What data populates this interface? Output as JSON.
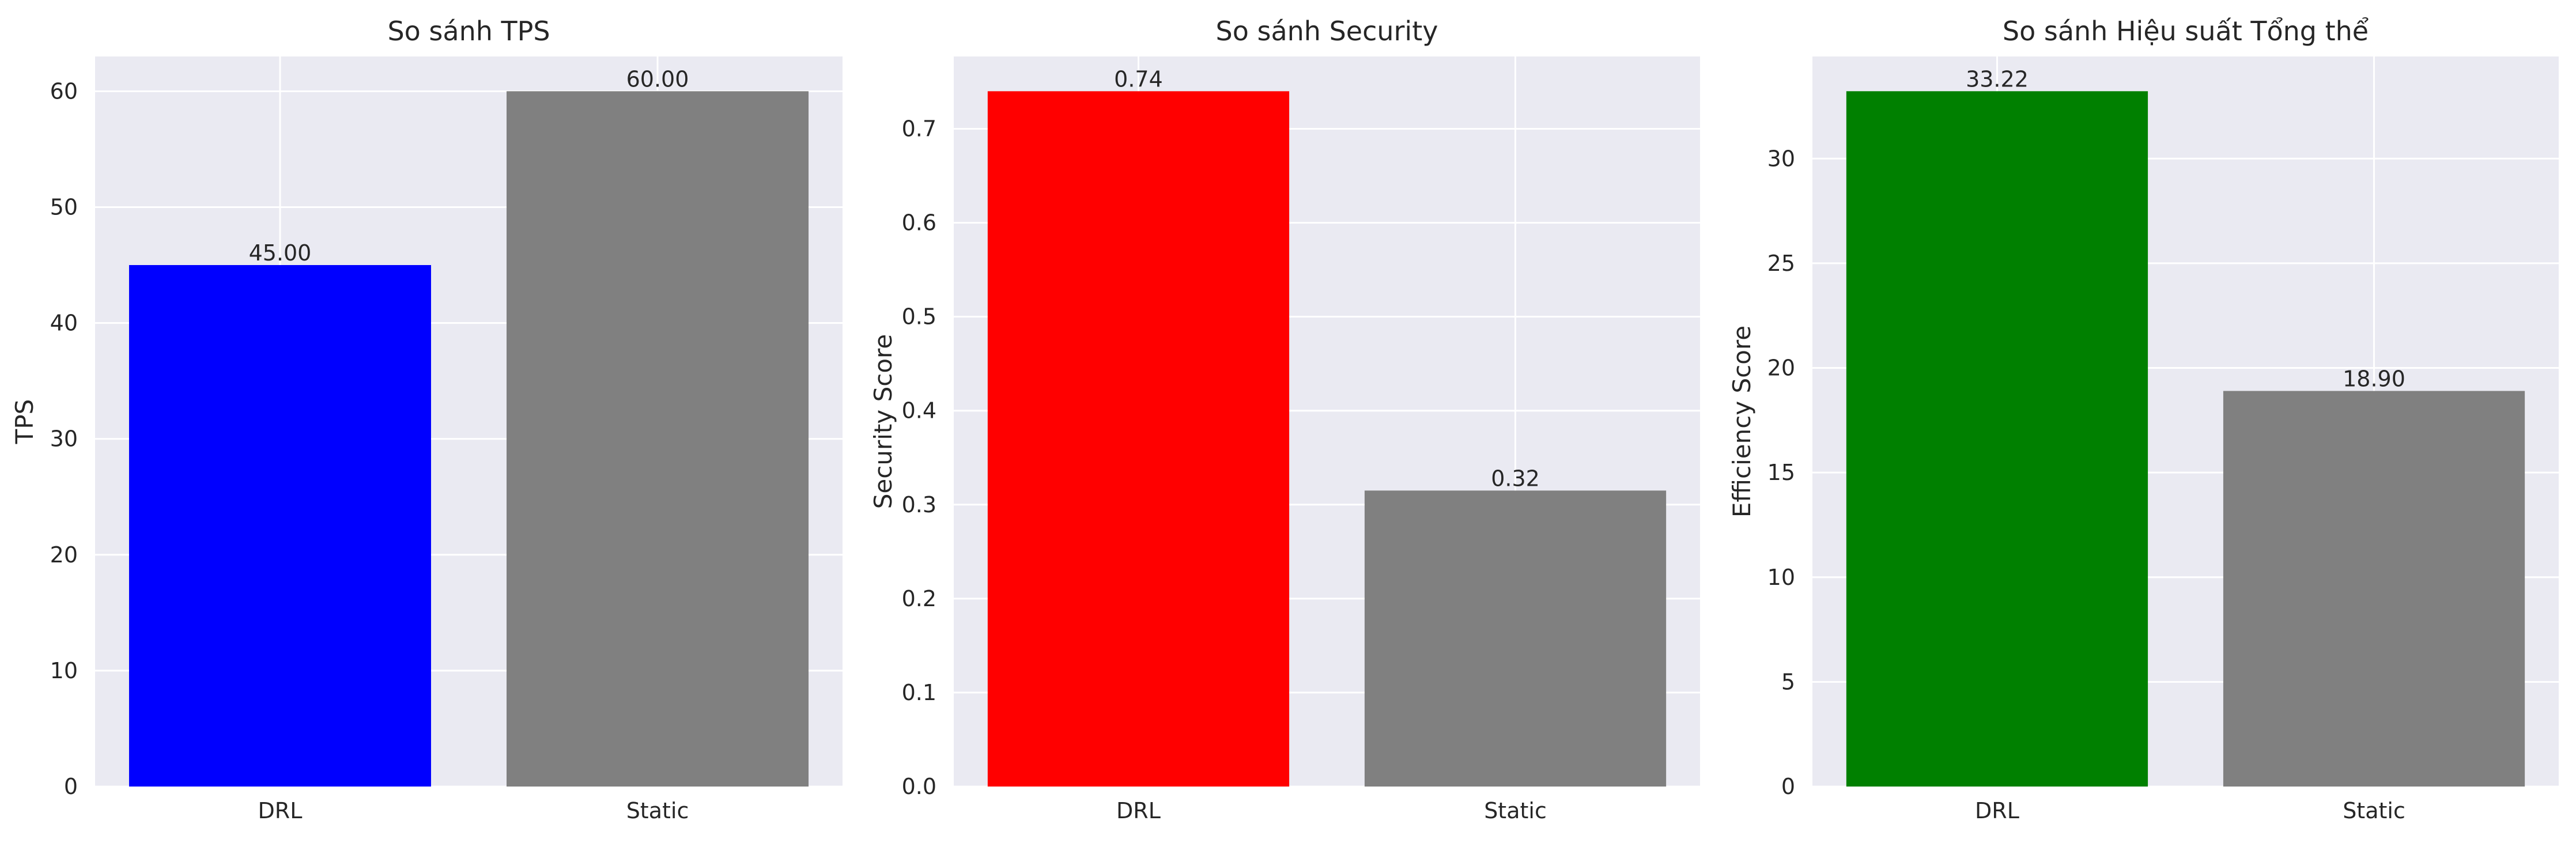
{
  "chart_data": [
    {
      "type": "bar",
      "title": "So sánh TPS",
      "xlabel": "",
      "ylabel": "TPS",
      "categories": [
        "DRL",
        "Static"
      ],
      "values": [
        45.0,
        60.0
      ],
      "value_labels": [
        "45.00",
        "60.00"
      ],
      "colors": [
        "#0000ff",
        "#808080"
      ],
      "ylim": [
        0,
        63
      ],
      "yticks": [
        0,
        10,
        20,
        30,
        40,
        50,
        60
      ],
      "ytick_labels": [
        "0",
        "10",
        "20",
        "30",
        "40",
        "50",
        "60"
      ],
      "grid": true
    },
    {
      "type": "bar",
      "title": "So sánh Security",
      "xlabel": "",
      "ylabel": "Security Score",
      "categories": [
        "DRL",
        "Static"
      ],
      "values": [
        0.74,
        0.315
      ],
      "value_labels": [
        "0.74",
        "0.32"
      ],
      "colors": [
        "#ff0000",
        "#808080"
      ],
      "ylim": [
        0,
        0.777
      ],
      "yticks": [
        0.0,
        0.1,
        0.2,
        0.3,
        0.4,
        0.5,
        0.6,
        0.7
      ],
      "ytick_labels": [
        "0.0",
        "0.1",
        "0.2",
        "0.3",
        "0.4",
        "0.5",
        "0.6",
        "0.7"
      ],
      "grid": true
    },
    {
      "type": "bar",
      "title": "So sánh Hiệu suất Tổng thể",
      "xlabel": "",
      "ylabel": "Efficiency Score",
      "categories": [
        "DRL",
        "Static"
      ],
      "values": [
        33.22,
        18.9
      ],
      "value_labels": [
        "33.22",
        "18.90"
      ],
      "colors": [
        "#008000",
        "#808080"
      ],
      "ylim": [
        0,
        34.88
      ],
      "yticks": [
        0,
        5,
        10,
        15,
        20,
        25,
        30
      ],
      "ytick_labels": [
        "0",
        "5",
        "10",
        "15",
        "20",
        "25",
        "30"
      ],
      "grid": true
    }
  ],
  "style": {
    "plot_background": "#eaeaf2",
    "grid_color": "#ffffff"
  }
}
